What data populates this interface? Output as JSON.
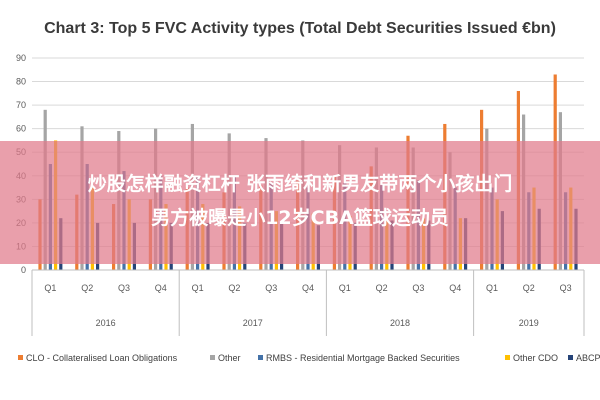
{
  "chart_data": {
    "type": "bar",
    "title": "Chart 3: Top 5 FVC Activity types (Total Debt Securities Issued €bn)",
    "ylim": [
      0,
      90
    ],
    "yticks": [
      0,
      10,
      20,
      30,
      40,
      50,
      60,
      70,
      80,
      90
    ],
    "grid": true,
    "legend_position": "bottom",
    "categories": [
      "Q1",
      "Q2",
      "Q3",
      "Q4",
      "Q1",
      "Q2",
      "Q3",
      "Q4",
      "Q1",
      "Q2",
      "Q3",
      "Q4",
      "Q1",
      "Q2",
      "Q3"
    ],
    "years": [
      {
        "label": "2016",
        "count": 4
      },
      {
        "label": "2017",
        "count": 4
      },
      {
        "label": "2018",
        "count": 4
      },
      {
        "label": "2019",
        "count": 3
      }
    ],
    "series": [
      {
        "name": "CLO - Collateralised Loan Obligations",
        "color": "#ed7d31",
        "values": [
          30,
          32,
          28,
          30,
          35,
          33,
          36,
          38,
          40,
          44,
          57,
          62,
          68,
          76,
          83
        ]
      },
      {
        "name": "Other",
        "color": "#a5a5a5",
        "values": [
          68,
          61,
          59,
          60,
          62,
          58,
          56,
          55,
          53,
          52,
          52,
          50,
          60,
          66,
          67
        ]
      },
      {
        "name": "RMBS - Residential Mortgage Backed Securities",
        "color": "#4472a8",
        "values": [
          45,
          45,
          42,
          40,
          40,
          40,
          37,
          35,
          37,
          36,
          38,
          35,
          35,
          33,
          33
        ]
      },
      {
        "name": "Other CDO",
        "color": "#ffc000",
        "values": [
          55,
          35,
          30,
          28,
          28,
          27,
          25,
          24,
          23,
          21,
          22,
          22,
          30,
          35,
          35
        ]
      },
      {
        "name": "ABCP",
        "color": "#264478",
        "values": [
          22,
          20,
          20,
          20,
          20,
          20,
          20,
          19,
          20,
          21,
          21,
          22,
          25,
          26,
          26
        ]
      }
    ]
  },
  "overlay_banner": {
    "line1": "炒股怎样融资杠杆 张雨绮和新男友带两个小孩出门",
    "line2": "男方被曝是小12岁CBA篮球运动员"
  }
}
